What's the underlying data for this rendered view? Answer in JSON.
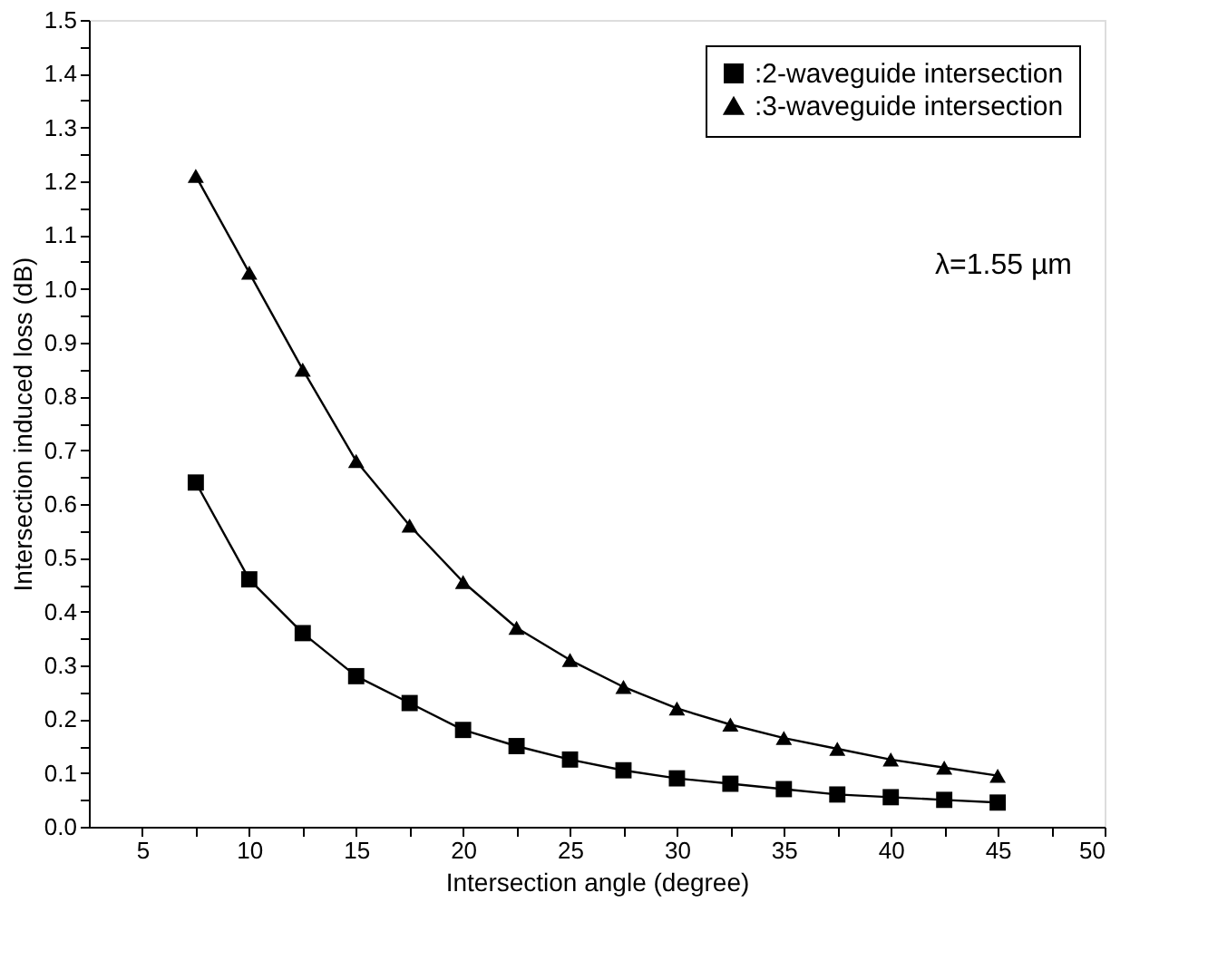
{
  "chart_data": {
    "type": "line",
    "xlabel": "Intersection angle (degree)",
    "ylabel": "Intersection induced loss (dB)",
    "x": [
      7.5,
      10,
      12.5,
      15,
      17.5,
      20,
      22.5,
      25,
      27.5,
      30,
      32.5,
      35,
      37.5,
      40,
      42.5,
      45
    ],
    "series": [
      {
        "name": ":2-waveguide intersection",
        "color": "#000000",
        "marker": "square",
        "values": [
          0.64,
          0.46,
          0.36,
          0.28,
          0.23,
          0.18,
          0.15,
          0.125,
          0.105,
          0.09,
          0.08,
          0.07,
          0.06,
          0.055,
          0.05,
          0.045
        ]
      },
      {
        "name": ":3-waveguide intersection",
        "color": "#000000",
        "marker": "triangle",
        "values": [
          1.21,
          1.03,
          0.85,
          0.68,
          0.56,
          0.455,
          0.37,
          0.31,
          0.26,
          0.22,
          0.19,
          0.165,
          0.145,
          0.125,
          0.11,
          0.095
        ]
      }
    ],
    "xlim": [
      2.5,
      50
    ],
    "xticks": [
      5,
      {
        "value": 7.5,
        "label": null
      },
      10,
      {
        "value": 12.5,
        "label": null
      },
      15,
      {
        "value": 17.5,
        "label": null
      },
      20,
      {
        "value": 22.5,
        "label": null
      },
      25,
      {
        "value": 27.5,
        "label": null
      },
      30,
      {
        "value": 32.5,
        "label": null
      },
      35,
      {
        "value": 37.5,
        "label": null
      },
      40,
      {
        "value": 42.5,
        "label": null
      },
      45,
      {
        "value": 47.5,
        "label": null
      },
      50
    ],
    "ylim": [
      0,
      1.5
    ],
    "yticks": [
      {
        "value": 0,
        "label": "0.0"
      },
      {
        "value": 0.05,
        "label": null
      },
      0.1,
      {
        "value": 0.15,
        "label": null
      },
      0.2,
      {
        "value": 0.25,
        "label": null
      },
      0.3,
      {
        "value": 0.35,
        "label": null
      },
      0.4,
      {
        "value": 0.45,
        "label": null
      },
      0.5,
      {
        "value": 0.55,
        "label": null
      },
      0.6,
      {
        "value": 0.65,
        "label": null
      },
      0.7,
      {
        "value": 0.75,
        "label": null
      },
      0.8,
      {
        "value": 0.85,
        "label": null
      },
      0.9,
      {
        "value": 0.95,
        "label": null
      },
      {
        "value": 1,
        "label": "1.0"
      },
      {
        "value": 1.05,
        "label": null
      },
      1.1,
      {
        "value": 1.15,
        "label": null
      },
      1.2,
      {
        "value": 1.25,
        "label": null
      },
      1.3,
      {
        "value": 1.35,
        "label": null
      },
      1.4,
      {
        "value": 1.45,
        "label": null
      },
      1.5
    ],
    "annotations": [
      "λ=1.55 µm"
    ],
    "legend": "top right",
    "grid": false,
    "line_style": "solid"
  }
}
